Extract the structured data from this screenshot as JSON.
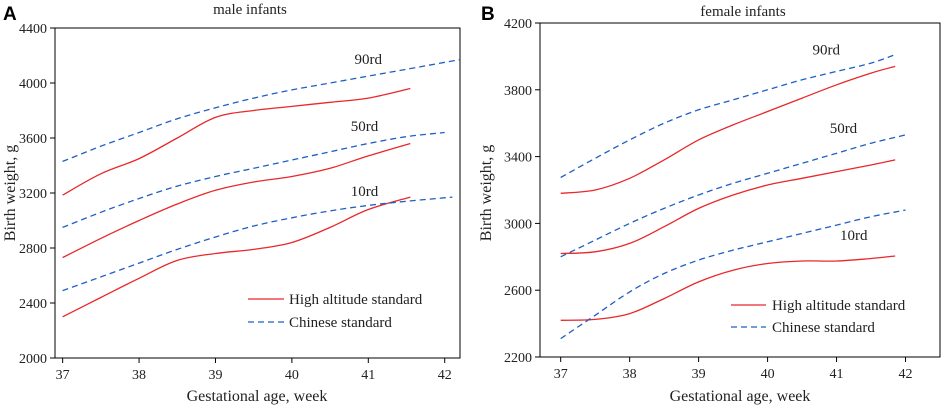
{
  "chart_data": [
    {
      "type": "line",
      "panel_letter": "A",
      "title": "male infants",
      "xlabel": "Gestational age, week",
      "ylabel": "Birth weight, g",
      "xlim": [
        36.9,
        42.2
      ],
      "ylim": [
        2000,
        4400
      ],
      "xticks": [
        37,
        38,
        39,
        40,
        41,
        42
      ],
      "yticks": [
        2000,
        2400,
        2800,
        3200,
        3600,
        4000,
        4400
      ],
      "grid": false,
      "legend": {
        "position": "bottom-right",
        "entries": [
          {
            "label": "High altitude standard",
            "style": "solid",
            "color": "#e8282a"
          },
          {
            "label": "Chinese standard",
            "style": "dashed",
            "color": "#1f5fc4"
          }
        ]
      },
      "curve_labels": [
        {
          "text": "90rd",
          "x": 41.0,
          "y": 4140
        },
        {
          "text": "50rd",
          "x": 40.95,
          "y": 3650
        },
        {
          "text": "10rd",
          "x": 40.95,
          "y": 3180
        }
      ],
      "series": [
        {
          "name": "High altitude 90th",
          "style": "solid",
          "color": "#e8282a",
          "x": [
            37,
            37.5,
            38,
            38.5,
            39,
            39.5,
            40,
            40.5,
            41,
            41.55
          ],
          "y": [
            3185,
            3340,
            3450,
            3600,
            3750,
            3800,
            3830,
            3860,
            3890,
            3960
          ]
        },
        {
          "name": "High altitude 50th",
          "style": "solid",
          "color": "#e8282a",
          "x": [
            37,
            37.5,
            38,
            38.5,
            39,
            39.5,
            40,
            40.5,
            41,
            41.55
          ],
          "y": [
            2730,
            2870,
            3000,
            3120,
            3220,
            3280,
            3320,
            3380,
            3470,
            3560
          ]
        },
        {
          "name": "High altitude 10th",
          "style": "solid",
          "color": "#e8282a",
          "x": [
            37,
            37.5,
            38,
            38.5,
            39,
            39.5,
            40,
            40.5,
            41,
            41.55
          ],
          "y": [
            2300,
            2440,
            2580,
            2710,
            2760,
            2790,
            2840,
            2950,
            3080,
            3170
          ]
        },
        {
          "name": "Chinese 90th",
          "style": "dashed",
          "color": "#1f5fc4",
          "x": [
            37,
            37.5,
            38,
            38.5,
            39,
            39.5,
            40,
            40.5,
            41,
            41.5,
            42.2
          ],
          "y": [
            3430,
            3540,
            3640,
            3740,
            3820,
            3890,
            3950,
            4000,
            4050,
            4100,
            4170
          ]
        },
        {
          "name": "Chinese 50th",
          "style": "dashed",
          "color": "#1f5fc4",
          "x": [
            37,
            37.5,
            38,
            38.5,
            39,
            39.5,
            40,
            40.5,
            41,
            41.5,
            42.0
          ],
          "y": [
            2950,
            3060,
            3160,
            3250,
            3320,
            3380,
            3440,
            3500,
            3560,
            3610,
            3640
          ]
        },
        {
          "name": "Chinese 10th",
          "style": "dashed",
          "color": "#1f5fc4",
          "x": [
            37,
            37.5,
            38,
            38.5,
            39,
            39.5,
            40,
            40.5,
            41,
            41.5,
            42.1
          ],
          "y": [
            2490,
            2590,
            2690,
            2790,
            2880,
            2960,
            3020,
            3070,
            3110,
            3140,
            3170
          ]
        }
      ]
    },
    {
      "type": "line",
      "panel_letter": "B",
      "title": "female infants",
      "xlabel": "Gestational age, week",
      "ylabel": "Birth weight, g",
      "xlim": [
        36.7,
        42.5
      ],
      "ylim": [
        2200,
        4200
      ],
      "xticks": [
        37,
        38,
        39,
        40,
        41,
        42
      ],
      "yticks": [
        2200,
        2600,
        3000,
        3400,
        3800,
        4200
      ],
      "grid": false,
      "legend": {
        "position": "bottom-right",
        "entries": [
          {
            "label": "High altitude standard",
            "style": "solid",
            "color": "#e8282a"
          },
          {
            "label": "Chinese standard",
            "style": "dashed",
            "color": "#1f5fc4"
          }
        ]
      },
      "curve_labels": [
        {
          "text": "90rd",
          "x": 40.85,
          "y": 4010
        },
        {
          "text": "50rd",
          "x": 41.1,
          "y": 3540
        },
        {
          "text": "10rd",
          "x": 41.25,
          "y": 2900
        }
      ],
      "series": [
        {
          "name": "High altitude 90th",
          "style": "solid",
          "color": "#e8282a",
          "x": [
            37,
            37.5,
            38,
            38.5,
            39,
            39.5,
            40,
            40.5,
            41,
            41.5,
            41.85
          ],
          "y": [
            3180,
            3200,
            3270,
            3380,
            3500,
            3590,
            3670,
            3750,
            3830,
            3900,
            3940
          ]
        },
        {
          "name": "High altitude 50th",
          "style": "solid",
          "color": "#e8282a",
          "x": [
            37,
            37.5,
            38,
            38.5,
            39,
            39.5,
            40,
            40.5,
            41,
            41.5,
            41.85
          ],
          "y": [
            2820,
            2830,
            2880,
            2980,
            3090,
            3170,
            3230,
            3270,
            3310,
            3350,
            3380
          ]
        },
        {
          "name": "High altitude 10th",
          "style": "solid",
          "color": "#e8282a",
          "x": [
            37,
            37.5,
            38,
            38.5,
            39,
            39.5,
            40,
            40.5,
            41,
            41.5,
            41.85
          ],
          "y": [
            2420,
            2425,
            2460,
            2550,
            2650,
            2720,
            2760,
            2775,
            2775,
            2790,
            2805
          ]
        },
        {
          "name": "Chinese 90th",
          "style": "dashed",
          "color": "#1f5fc4",
          "x": [
            37,
            37.5,
            38,
            38.5,
            39,
            39.5,
            40,
            40.5,
            41,
            41.5,
            41.85
          ],
          "y": [
            3275,
            3390,
            3500,
            3600,
            3680,
            3740,
            3800,
            3860,
            3910,
            3960,
            4010
          ]
        },
        {
          "name": "Chinese 50th",
          "style": "dashed",
          "color": "#1f5fc4",
          "x": [
            37,
            37.5,
            38,
            38.5,
            39,
            39.5,
            40,
            40.5,
            41,
            41.5,
            42.0
          ],
          "y": [
            2800,
            2900,
            3000,
            3090,
            3170,
            3240,
            3300,
            3360,
            3420,
            3480,
            3530
          ]
        },
        {
          "name": "Chinese 10th",
          "style": "dashed",
          "color": "#1f5fc4",
          "x": [
            37,
            37.5,
            38,
            38.5,
            39,
            39.5,
            40,
            40.5,
            41,
            41.5,
            42.0
          ],
          "y": [
            2310,
            2450,
            2590,
            2700,
            2780,
            2840,
            2890,
            2940,
            2990,
            3040,
            3080
          ]
        }
      ]
    }
  ]
}
